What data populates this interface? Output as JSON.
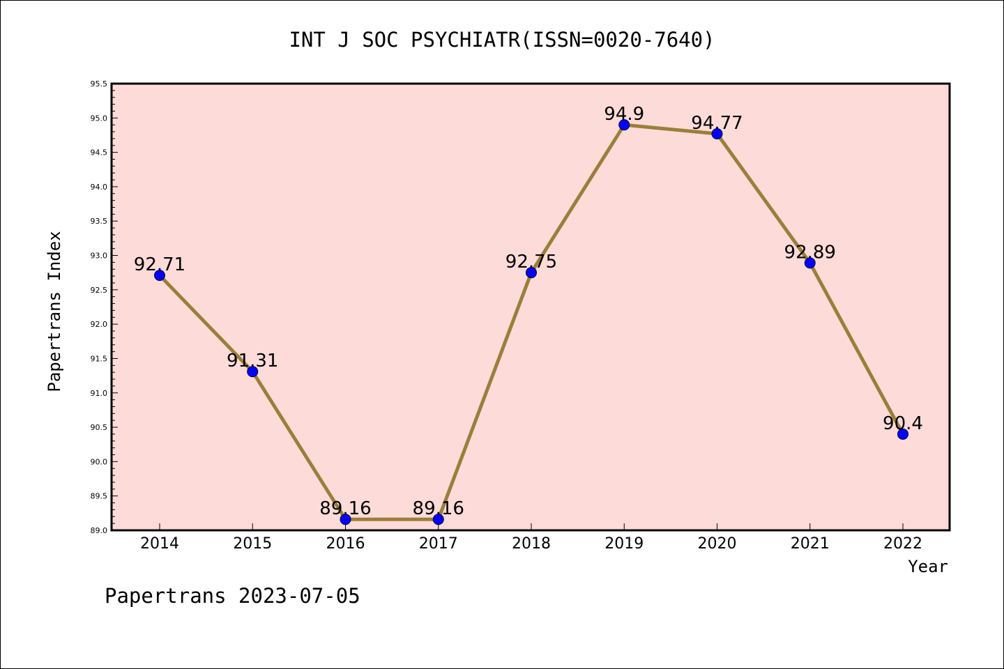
{
  "chart_data": {
    "type": "line",
    "title": "INT J SOC PSYCHIATR(ISSN=0020-7640)",
    "xlabel": "Year",
    "ylabel": "Papertrans Index",
    "categories": [
      "2014",
      "2015",
      "2016",
      "2017",
      "2018",
      "2019",
      "2020",
      "2021",
      "2022"
    ],
    "series": [
      {
        "values": [
          92.71,
          91.31,
          89.16,
          89.16,
          92.75,
          94.9,
          94.77,
          92.89,
          90.4
        ],
        "labels": [
          "92.71",
          "91.31",
          "89.16",
          "89.16",
          "92.75",
          "94.9",
          "94.77",
          "92.89",
          "90.4"
        ],
        "line_color": "#9b7e3a",
        "marker_color": "#0000ff"
      }
    ],
    "ylim": [
      89.0,
      95.5
    ],
    "yticks": [
      "89.0",
      "89.5",
      "90.0",
      "90.5",
      "91.0",
      "91.5",
      "92.0",
      "92.5",
      "93.0",
      "93.5",
      "94.0",
      "94.5",
      "95.0",
      "95.5"
    ],
    "plot_background": "#fddbd8",
    "grid": false,
    "legend": "none"
  },
  "footer": "Papertrans 2023-07-05"
}
